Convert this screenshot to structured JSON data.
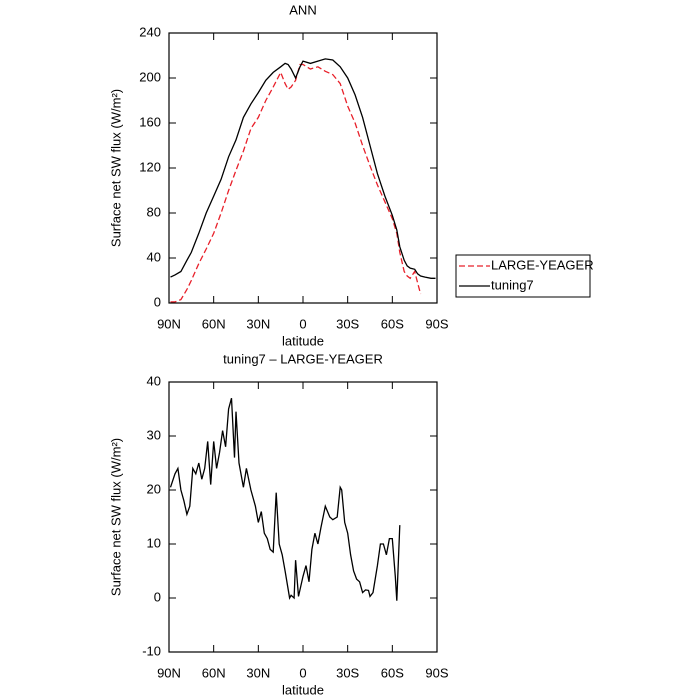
{
  "chart_data": [
    {
      "type": "line",
      "title": "ANN",
      "x_label": "latitude",
      "y_label": "Surface net SW flux (W/m²)",
      "x": [
        89,
        86,
        82,
        78,
        75,
        70,
        65,
        60,
        55,
        50,
        45,
        40,
        35,
        30,
        25,
        20,
        15,
        12,
        10,
        8,
        5,
        2,
        0,
        -5,
        -10,
        -15,
        -20,
        -25,
        -30,
        -35,
        -40,
        -45,
        -50,
        -55,
        -60,
        -63,
        -65,
        -68,
        -70,
        -72,
        -75,
        -77,
        -79,
        -82,
        -86,
        -89
      ],
      "series": [
        {
          "name": "LARGE-YEAGER",
          "color": "#e8202a",
          "line_style": "dashed",
          "values": [
            1,
            1,
            3,
            12,
            20,
            35,
            48,
            62,
            80,
            100,
            118,
            135,
            155,
            165,
            180,
            192,
            205,
            195,
            190,
            192,
            198,
            212,
            212,
            208,
            210,
            206,
            203,
            195,
            175,
            160,
            140,
            122,
            105,
            90,
            75,
            62,
            45,
            28,
            24,
            22,
            28,
            18,
            8,
            null,
            null,
            null
          ]
        },
        {
          "name": "tuning7",
          "color": "#000000",
          "line_style": "solid",
          "values": [
            23,
            25,
            28,
            38,
            45,
            62,
            80,
            95,
            110,
            130,
            145,
            165,
            177,
            187,
            198,
            205,
            210,
            213,
            212,
            208,
            200,
            210,
            215,
            213,
            215,
            217,
            216,
            210,
            200,
            185,
            165,
            140,
            115,
            95,
            78,
            65,
            50,
            38,
            33,
            31,
            30,
            26,
            24,
            23,
            22,
            22
          ]
        }
      ],
      "xlim": [
        90,
        -90
      ],
      "xticks": [
        {
          "value": 90,
          "label": "90N"
        },
        {
          "value": 60,
          "label": "60N"
        },
        {
          "value": 30,
          "label": "30N"
        },
        0,
        {
          "value": -30,
          "label": "30S"
        },
        {
          "value": -60,
          "label": "60S"
        },
        {
          "value": -90,
          "label": "90S"
        }
      ],
      "ylim": [
        0,
        240
      ],
      "yticks": [
        0,
        40,
        80,
        120,
        160,
        200,
        240
      ],
      "legend": "right"
    },
    {
      "type": "line",
      "title": "tuning7 – LARGE-YEAGER",
      "x_label": "latitude",
      "y_label": "Surface net SW flux (W/m²)",
      "x": [
        89,
        86,
        84,
        82,
        80,
        78,
        76,
        74,
        72,
        70,
        68,
        66,
        64,
        62,
        60,
        58,
        56,
        54,
        52,
        50,
        48,
        46,
        45,
        43,
        40,
        38,
        35,
        32,
        30,
        28,
        26,
        24,
        22,
        20,
        18,
        16,
        14,
        12,
        9,
        8,
        6,
        5,
        3,
        0,
        -2,
        -4,
        -6,
        -8,
        -10,
        -12,
        -15,
        -18,
        -20,
        -23,
        -25,
        -26,
        -28,
        -30,
        -32,
        -34,
        -36,
        -38,
        -40,
        -42,
        -44,
        -45,
        -47,
        -50,
        -52,
        -54,
        -56,
        -58,
        -60,
        -62,
        -63,
        -65
      ],
      "series": [
        {
          "name": "tuning7 – LARGE-YEAGER",
          "color": "#000000",
          "line_style": "solid",
          "values": [
            20.5,
            23,
            24,
            20,
            18,
            15.5,
            17,
            24,
            23,
            25,
            22,
            24,
            29,
            21,
            29,
            24,
            27,
            31,
            28,
            35,
            37,
            26,
            34.5,
            25,
            20.5,
            24,
            20,
            17,
            14,
            16,
            12,
            11,
            9,
            8.5,
            19.5,
            10,
            8,
            5,
            0,
            0.5,
            0,
            7,
            0.3,
            4,
            6,
            3,
            9,
            12,
            10,
            13,
            17,
            15,
            14.5,
            15,
            20.5,
            20,
            14,
            12,
            8,
            5,
            3.5,
            3,
            1,
            1.5,
            1.4,
            0.3,
            1,
            6,
            10,
            10,
            8,
            11,
            11,
            4,
            -0.5,
            13.5
          ]
        }
      ],
      "xlim": [
        90,
        -90
      ],
      "xticks": [
        {
          "value": 90,
          "label": "90N"
        },
        {
          "value": 60,
          "label": "60N"
        },
        {
          "value": 30,
          "label": "30N"
        },
        0,
        {
          "value": -30,
          "label": "30S"
        },
        {
          "value": -60,
          "label": "60S"
        },
        {
          "value": -90,
          "label": "90S"
        }
      ],
      "ylim": [
        -10,
        40
      ],
      "yticks": [
        -10,
        0,
        10,
        20,
        30,
        40
      ]
    }
  ]
}
